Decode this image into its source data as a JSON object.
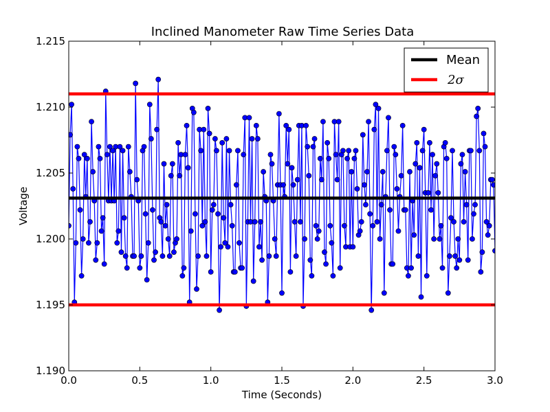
{
  "chart_data": {
    "type": "line",
    "title": "Inclined Manometer Raw Time Series Data",
    "xlabel": "Time (Seconds)",
    "ylabel": "Voltage",
    "xlim": [
      0.0,
      3.0
    ],
    "ylim": [
      1.19,
      1.215
    ],
    "xticks": [
      "0.0",
      "0.5",
      "1.0",
      "1.5",
      "2.0",
      "2.5",
      "3.0"
    ],
    "yticks": [
      "1.190",
      "1.195",
      "1.200",
      "1.205",
      "1.210",
      "1.215"
    ],
    "grid": false,
    "legend_position": "top-right",
    "reference_lines": [
      {
        "name": "Mean",
        "y": 1.2031,
        "color": "#000000"
      },
      {
        "name": "2σ",
        "y": 1.211,
        "color": "#ff0000"
      },
      {
        "name": "2σ",
        "y": 1.195,
        "color": "#ff0000"
      }
    ],
    "legend": [
      {
        "label": "Mean",
        "color": "#000000",
        "style": "plain"
      },
      {
        "label": "2σ",
        "color": "#ff0000",
        "style": "math"
      }
    ],
    "series": [
      {
        "color": "#0000ff",
        "x_start": 0.0,
        "x_step": 0.01,
        "values": [
          1.201,
          1.2079,
          1.2102,
          1.2038,
          1.1952,
          1.1997,
          1.207,
          1.2061,
          1.2022,
          1.1972,
          1.2,
          1.2064,
          1.2032,
          1.2061,
          1.1997,
          1.2013,
          1.2089,
          1.2051,
          1.2029,
          1.1984,
          1.1997,
          1.207,
          1.2061,
          1.2006,
          1.2016,
          1.1981,
          1.2112,
          1.2064,
          1.2029,
          1.207,
          1.2029,
          1.2067,
          1.2029,
          1.207,
          1.1997,
          1.2006,
          1.207,
          1.199,
          1.2067,
          1.2016,
          1.1987,
          1.1978,
          1.207,
          1.2051,
          1.2032,
          1.1987,
          1.1987,
          1.2118,
          1.2045,
          1.2029,
          1.1978,
          1.1987,
          1.2067,
          1.207,
          1.2019,
          1.1969,
          1.1997,
          1.2102,
          1.2076,
          1.2022,
          1.1984,
          1.199,
          1.2083,
          1.2121,
          1.2016,
          1.2013,
          1.1987,
          1.2057,
          1.201,
          1.2026,
          1.2,
          1.1987,
          1.2048,
          1.2057,
          1.199,
          1.1997,
          1.2,
          1.2073,
          1.2048,
          1.2064,
          1.1972,
          1.1978,
          1.2064,
          1.2086,
          1.2054,
          1.1952,
          1.2006,
          1.2099,
          1.2096,
          1.2019,
          1.1962,
          1.1987,
          1.2083,
          1.2067,
          1.201,
          1.2083,
          1.2013,
          1.1987,
          1.2099,
          1.208,
          1.1975,
          1.2022,
          1.2026,
          1.2076,
          1.2067,
          1.2019,
          1.1946,
          1.1994,
          1.2073,
          1.2016,
          1.1997,
          1.2076,
          1.1994,
          1.2067,
          1.2026,
          1.201,
          1.1975,
          1.1975,
          1.2041,
          1.2067,
          1.1997,
          1.1978,
          1.1978,
          1.2064,
          1.2092,
          1.1949,
          1.2013,
          1.2092,
          1.2013,
          1.2076,
          1.1968,
          1.2013,
          1.2086,
          1.2076,
          1.1994,
          1.2013,
          1.1984,
          1.2051,
          1.2032,
          1.2029,
          1.1952,
          1.1987,
          1.2064,
          1.2057,
          1.2029,
          1.2,
          1.1987,
          1.2041,
          1.2095,
          1.2041,
          1.1959,
          1.2041,
          1.2032,
          1.2086,
          1.2057,
          1.2083,
          1.1975,
          1.2054,
          1.2041,
          1.2013,
          1.1987,
          1.2045,
          1.2086,
          1.2013,
          1.2086,
          1.1949,
          1.2,
          1.2086,
          1.207,
          1.2048,
          1.1984,
          1.1972,
          1.207,
          1.2076,
          1.201,
          1.2,
          1.2006,
          1.2061,
          1.2045,
          1.2089,
          1.199,
          1.1981,
          1.2073,
          1.2061,
          1.201,
          1.1997,
          1.1972,
          1.2089,
          1.2064,
          1.2045,
          1.2089,
          1.1978,
          1.2064,
          1.2067,
          1.201,
          1.1994,
          1.2061,
          1.2067,
          1.1994,
          1.2051,
          1.1994,
          1.2061,
          1.2067,
          1.2038,
          1.2003,
          1.2006,
          1.2013,
          1.2079,
          1.2041,
          1.2026,
          1.2051,
          1.2089,
          1.2019,
          1.1946,
          1.201,
          1.2083,
          1.2102,
          1.2013,
          1.2099,
          1.2,
          1.2026,
          1.2051,
          1.1959,
          1.2032,
          1.2067,
          1.2092,
          1.2022,
          1.1981,
          1.1981,
          1.207,
          1.2064,
          1.2038,
          1.2006,
          1.2032,
          1.2048,
          1.2086,
          1.2022,
          1.2022,
          1.1978,
          1.1972,
          1.2051,
          1.1978,
          1.2029,
          1.2003,
          1.2057,
          1.2073,
          1.1987,
          1.2054,
          1.1956,
          1.2067,
          1.2083,
          1.2035,
          1.1972,
          1.2035,
          1.2073,
          1.2022,
          1.2064,
          1.2,
          1.2048,
          1.2057,
          1.2035,
          1.2,
          1.201,
          1.1978,
          1.207,
          1.2073,
          1.2061,
          1.1959,
          1.1987,
          1.2016,
          1.2067,
          1.2013,
          1.1987,
          1.1978,
          1.2,
          1.1984,
          1.2057,
          1.2064,
          1.2013,
          1.2051,
          1.2026,
          1.1984,
          1.2067,
          1.2067,
          1.2,
          1.2019,
          1.2026,
          1.2093,
          1.2099,
          1.2067,
          1.1975,
          1.199,
          1.208,
          1.207,
          1.2013,
          1.2003,
          1.201,
          1.2045,
          1.2045,
          1.2041,
          1.1991
        ]
      }
    ]
  }
}
